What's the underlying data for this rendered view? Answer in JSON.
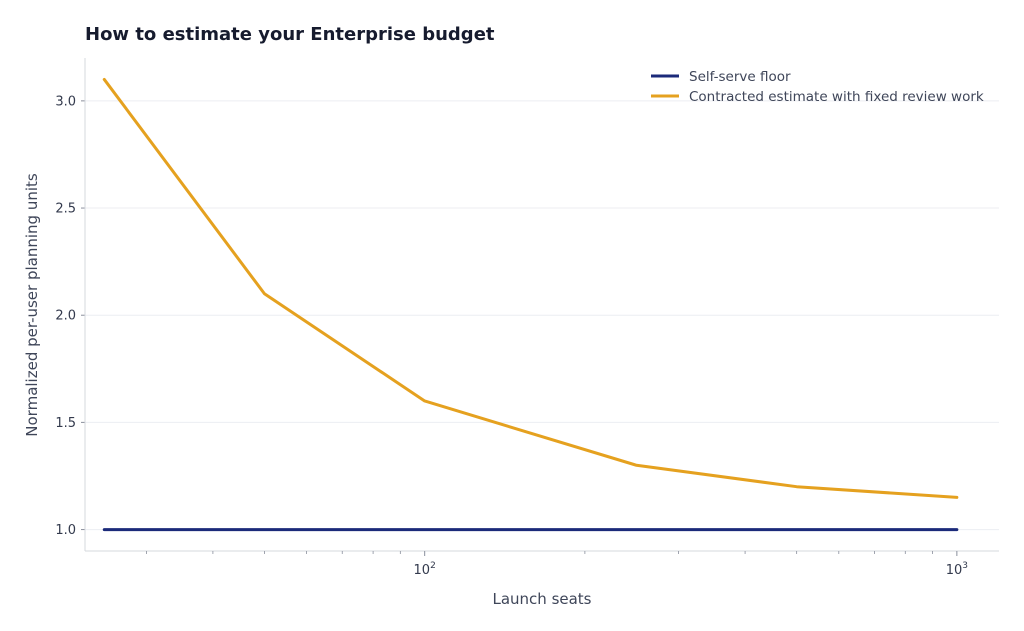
{
  "chart_data": {
    "type": "line",
    "title": "How to estimate your Enterprise budget",
    "xlabel": "Launch seats",
    "ylabel": "Normalized per-user planning units",
    "x_scale": "log",
    "xlim": [
      23,
      1200
    ],
    "ylim": [
      0.9,
      3.2
    ],
    "y_ticks": [
      1.0,
      1.5,
      2.0,
      2.5,
      3.0
    ],
    "y_tick_labels": [
      "1.0",
      "1.5",
      "2.0",
      "2.5",
      "3.0"
    ],
    "x_ticks": [
      {
        "value": 100,
        "base": "10",
        "exp": "2"
      },
      {
        "value": 1000,
        "base": "10",
        "exp": "3"
      }
    ],
    "grid": "horizontal",
    "legend_position": "top-right",
    "series": [
      {
        "name": "Self-serve floor",
        "color": "#1b2a7a",
        "x": [
          25,
          1000
        ],
        "y": [
          1.0,
          1.0
        ]
      },
      {
        "name": "Contracted estimate with fixed review work",
        "color": "#e5a11f",
        "x": [
          25,
          50,
          100,
          250,
          500,
          1000
        ],
        "y": [
          3.1,
          2.1,
          1.6,
          1.3,
          1.2,
          1.15
        ]
      }
    ]
  }
}
